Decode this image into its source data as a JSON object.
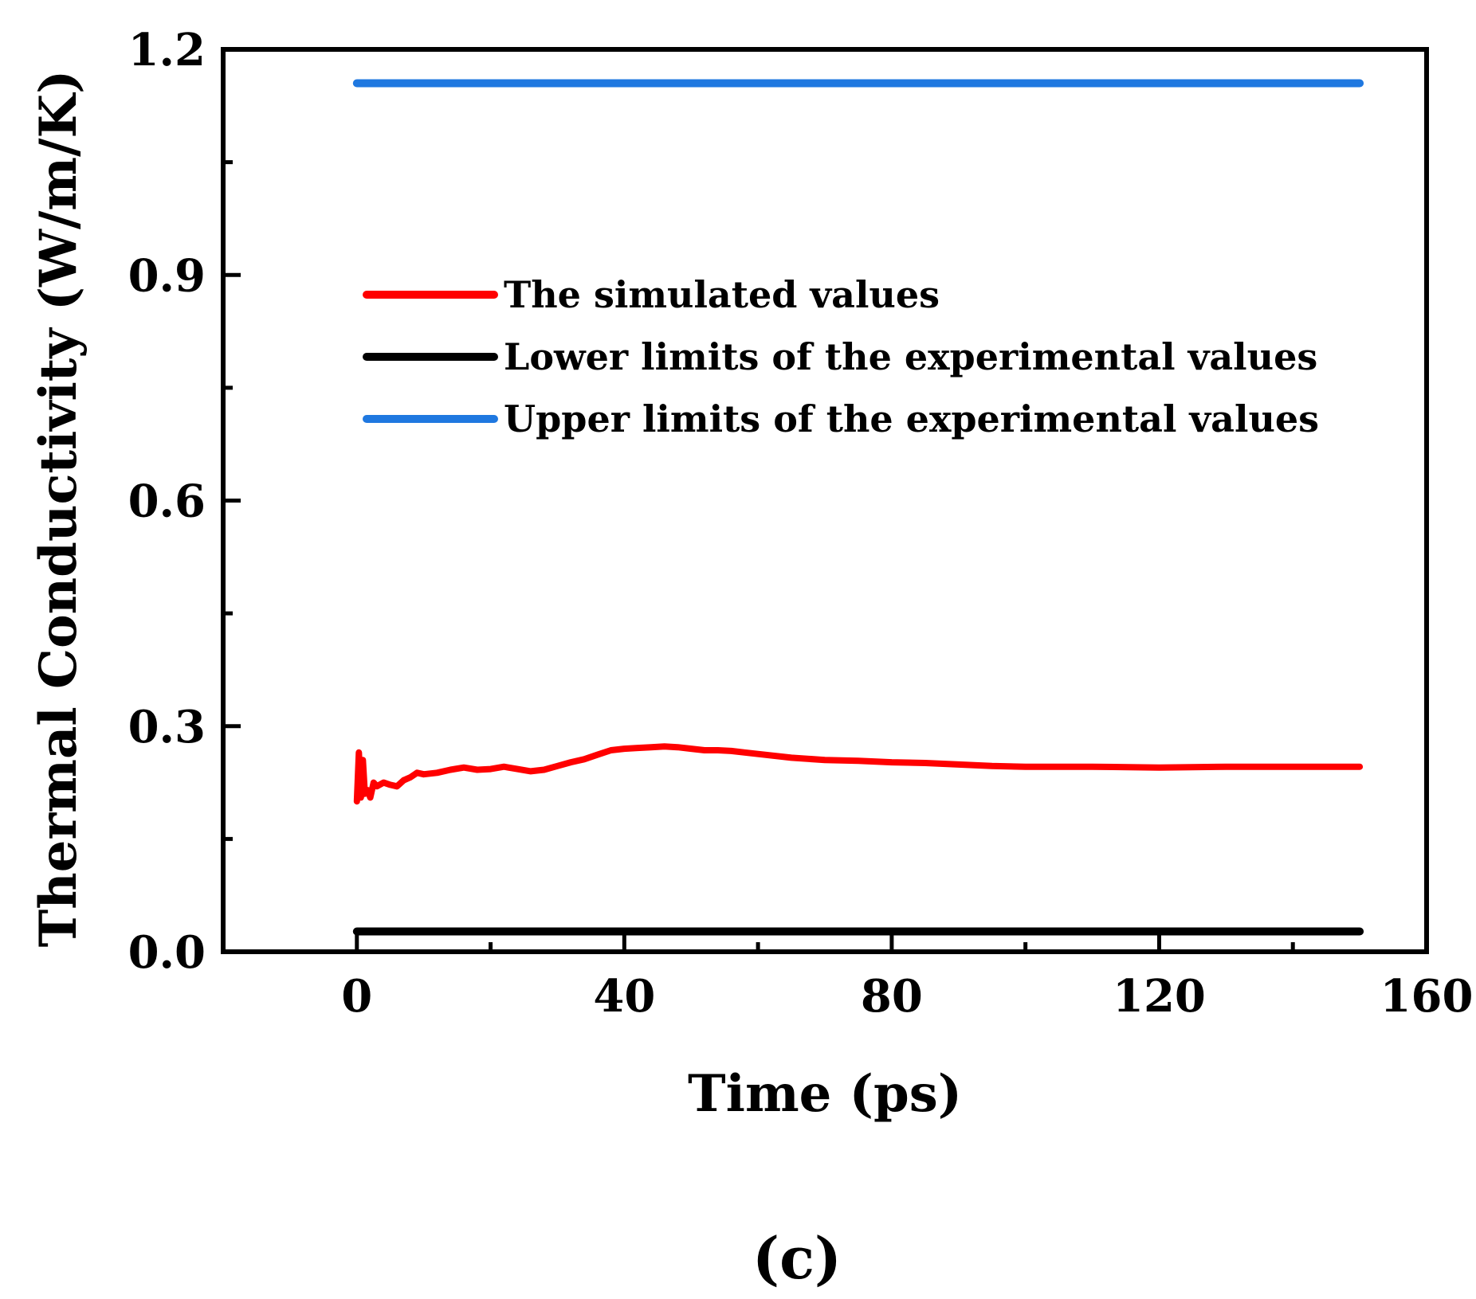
{
  "chart_data": {
    "type": "line",
    "title": "",
    "xlabel": "Time (ps)",
    "ylabel": "Thermal Conductivity (W/m/K)",
    "xlim": [
      -20,
      160
    ],
    "ylim": [
      0.0,
      1.2
    ],
    "x_ticks": [
      0,
      40,
      80,
      120,
      160
    ],
    "x_tick_labels": [
      "0",
      "40",
      "80",
      "120",
      "160"
    ],
    "y_ticks": [
      0.0,
      0.3,
      0.6,
      0.9,
      1.2
    ],
    "y_tick_labels": [
      "0.0",
      "0.3",
      "0.6",
      "0.9",
      "1.2"
    ],
    "grid": false,
    "legend_position": "upper-left-center",
    "caption": "(c)",
    "series": [
      {
        "name": "The simulated values",
        "color": "#ff0000",
        "x": [
          0,
          0.3,
          0.6,
          0.9,
          1.2,
          1.6,
          2,
          2.5,
          3,
          4,
          5,
          6,
          7,
          8,
          9,
          10,
          12,
          14,
          16,
          18,
          20,
          22,
          24,
          26,
          28,
          30,
          32,
          34,
          36,
          38,
          40,
          42,
          44,
          46,
          48,
          50,
          52,
          54,
          56,
          58,
          60,
          65,
          70,
          75,
          80,
          85,
          90,
          95,
          100,
          110,
          120,
          130,
          140,
          150
        ],
        "y": [
          0.2,
          0.265,
          0.205,
          0.255,
          0.21,
          0.215,
          0.205,
          0.225,
          0.22,
          0.225,
          0.222,
          0.22,
          0.228,
          0.232,
          0.238,
          0.236,
          0.238,
          0.242,
          0.245,
          0.242,
          0.243,
          0.246,
          0.243,
          0.24,
          0.242,
          0.247,
          0.252,
          0.256,
          0.262,
          0.268,
          0.27,
          0.271,
          0.272,
          0.273,
          0.272,
          0.27,
          0.268,
          0.268,
          0.267,
          0.265,
          0.263,
          0.258,
          0.255,
          0.254,
          0.252,
          0.251,
          0.249,
          0.247,
          0.246,
          0.246,
          0.245,
          0.246,
          0.246,
          0.246
        ]
      },
      {
        "name": "Lower limits of the experimental values",
        "color": "#000000",
        "x": [
          0,
          150
        ],
        "y": [
          0.027,
          0.027
        ]
      },
      {
        "name": "Upper limits of the experimental values",
        "color": "#1f78e0",
        "x": [
          0,
          150
        ],
        "y": [
          1.155,
          1.155
        ]
      }
    ]
  }
}
